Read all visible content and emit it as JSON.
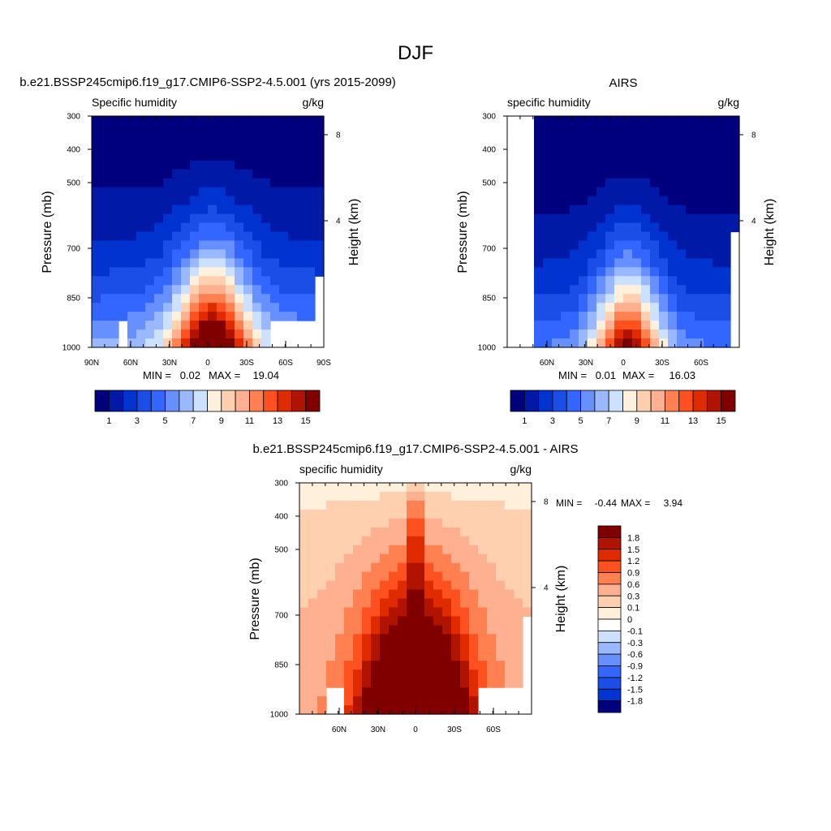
{
  "page_title": "DJF",
  "chart_data": [
    {
      "type": "heatmap",
      "id": "model",
      "title": "b.e21.BSSP245cmip6.f19_g17.CMIP6-SSP2-4.5.001 (yrs 2015-2099)",
      "left_label": "Specific humidity",
      "right_label": "g/kg",
      "xlabel": "",
      "ylabel": "Pressure (mb)",
      "y2label": "Height (km)",
      "x_ticks": [
        "90N",
        "60N",
        "30N",
        "0",
        "30S",
        "60S",
        "90S"
      ],
      "y_ticks": [
        "300",
        "400",
        "500",
        "700",
        "850",
        "1000"
      ],
      "y2_ticks": [
        "8",
        "4"
      ],
      "min_label": "MIN =",
      "min_value": "0.02",
      "max_label": "MAX =",
      "max_value": "19.04",
      "colorbar": {
        "orientation": "horizontal",
        "labels": [
          "1",
          "3",
          "5",
          "7",
          "9",
          "11",
          "13",
          "15"
        ],
        "colors": [
          "#00007f",
          "#0019a7",
          "#0033cf",
          "#1a4ee6",
          "#3366ff",
          "#6690ff",
          "#99b8ff",
          "#cce0ff",
          "#fff0dc",
          "#ffd0b0",
          "#ffb090",
          "#ff8050",
          "#ff5020",
          "#e02a00",
          "#b01400",
          "#800000"
        ]
      },
      "values_ref": "#ref-1a"
    },
    {
      "type": "heatmap",
      "id": "obs",
      "title": "AIRS",
      "left_label": "specific humidity",
      "right_label": "g/kg",
      "xlabel": "",
      "ylabel": "Pressure (mb)",
      "y2label": "Height (km)",
      "x_ticks": [
        "60N",
        "30N",
        "0",
        "30S",
        "60S"
      ],
      "y_ticks": [
        "300",
        "400",
        "500",
        "700",
        "850",
        "1000"
      ],
      "y2_ticks": [
        "8",
        "4"
      ],
      "min_label": "MIN =",
      "min_value": "0.01",
      "max_label": "MAX =",
      "max_value": "16.03",
      "colorbar": {
        "orientation": "horizontal",
        "labels": [
          "1",
          "3",
          "5",
          "7",
          "9",
          "11",
          "13",
          "15"
        ],
        "colors": [
          "#00007f",
          "#0019a7",
          "#0033cf",
          "#1a4ee6",
          "#3366ff",
          "#6690ff",
          "#99b8ff",
          "#cce0ff",
          "#fff0dc",
          "#ffd0b0",
          "#ffb090",
          "#ff8050",
          "#ff5020",
          "#e02a00",
          "#b01400",
          "#800000"
        ]
      },
      "values_ref": "#ref-2a"
    },
    {
      "type": "heatmap",
      "id": "diff",
      "title": "b.e21.BSSP245cmip6.f19_g17.CMIP6-SSP2-4.5.001 - AIRS",
      "left_label": "specific humidity",
      "right_label": "g/kg",
      "xlabel": "",
      "ylabel": "Pressure (mb)",
      "y2label": "Height (km)",
      "x_ticks": [
        "60N",
        "30N",
        "0",
        "30S",
        "60S"
      ],
      "y_ticks": [
        "300",
        "400",
        "500",
        "700",
        "850",
        "1000"
      ],
      "y2_ticks": [
        "8",
        "4"
      ],
      "min_label": "MIN =",
      "min_value": "-0.44",
      "max_label": "MAX =",
      "max_value": "3.94",
      "colorbar": {
        "orientation": "vertical",
        "labels": [
          "1.8",
          "1.5",
          "1.2",
          "0.9",
          "0.6",
          "0.3",
          "0.1",
          "0",
          "-0.1",
          "-0.3",
          "-0.6",
          "-0.9",
          "-1.2",
          "-1.5",
          "-1.8"
        ],
        "colors": [
          "#800000",
          "#b01400",
          "#e02a00",
          "#ff5020",
          "#ff8050",
          "#ffb090",
          "#ffd0b0",
          "#fff0dc",
          "#ffffff",
          "#cce0ff",
          "#99b8ff",
          "#6690ff",
          "#3366ff",
          "#1a4ee6",
          "#0033cf",
          "#00007f"
        ]
      },
      "values_ref": "#ref-3a"
    }
  ]
}
